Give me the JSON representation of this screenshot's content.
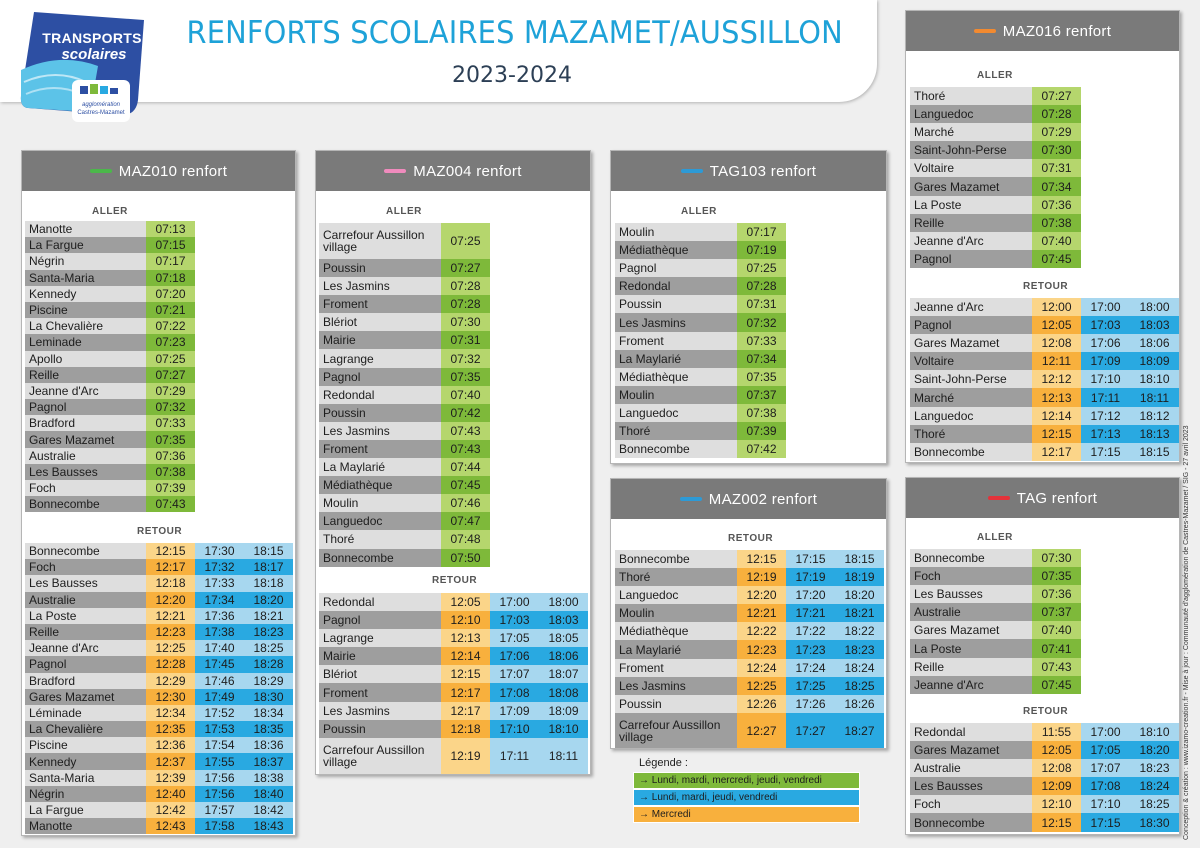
{
  "header": {
    "title": "RENFORTS SCOLAIRES MAZAMET/AUSSILLON",
    "year": "2023-2024",
    "logo": {
      "line1": "TRANSPORTS",
      "line2": "scolaires",
      "line3": "agglomération",
      "line4": "Castres-Mazamet"
    }
  },
  "colors": {
    "title_blue": "#1ea2d8",
    "line_green": "#4bb84a",
    "line_pink": "#f08bbd",
    "line_blue": "#2d9ad6",
    "line_orange": "#f28a30",
    "line_red": "#e3323a",
    "green_time": "#7eb93a",
    "orange_time": "#f8b03d",
    "blue_time": "#29a9e1"
  },
  "lines": [
    {
      "id": "maz010",
      "name": "MAZ010 renfort",
      "swatch": "line_green",
      "aller_label": "ALLER",
      "aller": [
        [
          "Manotte",
          "07:13"
        ],
        [
          "La Fargue",
          "07:15"
        ],
        [
          "Négrin",
          "07:17"
        ],
        [
          "Santa-Maria",
          "07:18"
        ],
        [
          "Kennedy",
          "07:20"
        ],
        [
          "Piscine",
          "07:21"
        ],
        [
          "La Chevalière",
          "07:22"
        ],
        [
          "Leminade",
          "07:23"
        ],
        [
          "Apollo",
          "07:25"
        ],
        [
          "Reille",
          "07:27"
        ],
        [
          "Jeanne d'Arc",
          "07:29"
        ],
        [
          "Pagnol",
          "07:32"
        ],
        [
          "Bradford",
          "07:33"
        ],
        [
          "Gares Mazamet",
          "07:35"
        ],
        [
          "Australie",
          "07:36"
        ],
        [
          "Les Bausses",
          "07:38"
        ],
        [
          "Foch",
          "07:39"
        ],
        [
          "Bonnecombe",
          "07:43"
        ]
      ],
      "retour_label": "RETOUR",
      "retour": [
        [
          "Bonnecombe",
          "12:15",
          "17:30",
          "18:15"
        ],
        [
          "Foch",
          "12:17",
          "17:32",
          "18:17"
        ],
        [
          "Les Bausses",
          "12:18",
          "17:33",
          "18:18"
        ],
        [
          "Australie",
          "12:20",
          "17:34",
          "18:20"
        ],
        [
          "La Poste",
          "12:21",
          "17:36",
          "18:21"
        ],
        [
          "Reille",
          "12:23",
          "17:38",
          "18:23"
        ],
        [
          "Jeanne d'Arc",
          "12:25",
          "17:40",
          "18:25"
        ],
        [
          "Pagnol",
          "12:28",
          "17:45",
          "18:28"
        ],
        [
          "Bradford",
          "12:29",
          "17:46",
          "18:29"
        ],
        [
          "Gares Mazamet",
          "12:30",
          "17:49",
          "18:30"
        ],
        [
          "Léminade",
          "12:34",
          "17:52",
          "18:34"
        ],
        [
          "La Chevalière",
          "12:35",
          "17:53",
          "18:35"
        ],
        [
          "Piscine",
          "12:36",
          "17:54",
          "18:36"
        ],
        [
          "Kennedy",
          "12:37",
          "17:55",
          "18:37"
        ],
        [
          "Santa-Maria",
          "12:39",
          "17:56",
          "18:38"
        ],
        [
          "Négrin",
          "12:40",
          "17:56",
          "18:40"
        ],
        [
          "La Fargue",
          "12:42",
          "17:57",
          "18:42"
        ],
        [
          "Manotte",
          "12:43",
          "17:58",
          "18:43"
        ]
      ]
    },
    {
      "id": "maz004",
      "name": "MAZ004 renfort",
      "swatch": "line_pink",
      "aller_label": "ALLER",
      "aller": [
        [
          "Carrefour Aussillon village",
          "07:25"
        ],
        [
          "Poussin",
          "07:27"
        ],
        [
          "Les Jasmins",
          "07:28"
        ],
        [
          "Froment",
          "07:28"
        ],
        [
          "Blériot",
          "07:30"
        ],
        [
          "Mairie",
          "07:31"
        ],
        [
          "Lagrange",
          "07:32"
        ],
        [
          "Pagnol",
          "07:35"
        ],
        [
          "Redondal",
          "07:40"
        ],
        [
          "Poussin",
          "07:42"
        ],
        [
          "Les Jasmins",
          "07:43"
        ],
        [
          "Froment",
          "07:43"
        ],
        [
          "La Maylarié",
          "07:44"
        ],
        [
          "Médiathèque",
          "07:45"
        ],
        [
          "Moulin",
          "07:46"
        ],
        [
          "Languedoc",
          "07:47"
        ],
        [
          "Thoré",
          "07:48"
        ],
        [
          "Bonnecombe",
          "07:50"
        ]
      ],
      "retour_label": "RETOUR",
      "retour": [
        [
          "Redondal",
          "12:05",
          "17:00",
          "18:00"
        ],
        [
          "Pagnol",
          "12:10",
          "17:03",
          "18:03"
        ],
        [
          "Lagrange",
          "12:13",
          "17:05",
          "18:05"
        ],
        [
          "Mairie",
          "12:14",
          "17:06",
          "18:06"
        ],
        [
          "Blériot",
          "12:15",
          "17:07",
          "18:07"
        ],
        [
          "Froment",
          "12:17",
          "17:08",
          "18:08"
        ],
        [
          "Les Jasmins",
          "12:17",
          "17:09",
          "18:09"
        ],
        [
          "Poussin",
          "12:18",
          "17:10",
          "18:10"
        ],
        [
          "Carrefour Aussillon village",
          "12:19",
          "17:11",
          "18:11"
        ]
      ]
    },
    {
      "id": "tag103",
      "name": "TAG103 renfort",
      "swatch": "line_blue",
      "aller_label": "ALLER",
      "aller": [
        [
          "Moulin",
          "07:17"
        ],
        [
          "Médiathèque",
          "07:19"
        ],
        [
          "Pagnol",
          "07:25"
        ],
        [
          "Redondal",
          "07:28"
        ],
        [
          "Poussin",
          "07:31"
        ],
        [
          "Les Jasmins",
          "07:32"
        ],
        [
          "Froment",
          "07:33"
        ],
        [
          "La Maylarié",
          "07:34"
        ],
        [
          "Médiathèque",
          "07:35"
        ],
        [
          "Moulin",
          "07:37"
        ],
        [
          "Languedoc",
          "07:38"
        ],
        [
          "Thoré",
          "07:39"
        ],
        [
          "Bonnecombe",
          "07:42"
        ]
      ]
    },
    {
      "id": "maz002",
      "name": "MAZ002 renfort",
      "swatch": "line_blue",
      "retour_label": "RETOUR",
      "retour": [
        [
          "Bonnecombe",
          "12:15",
          "17:15",
          "18:15"
        ],
        [
          "Thoré",
          "12:19",
          "17:19",
          "18:19"
        ],
        [
          "Languedoc",
          "12:20",
          "17:20",
          "18:20"
        ],
        [
          "Moulin",
          "12:21",
          "17:21",
          "18:21"
        ],
        [
          "Médiathèque",
          "12:22",
          "17:22",
          "18:22"
        ],
        [
          "La Maylarié",
          "12:23",
          "17:23",
          "18:23"
        ],
        [
          "Froment",
          "12:24",
          "17:24",
          "18:24"
        ],
        [
          "Les Jasmins",
          "12:25",
          "17:25",
          "18:25"
        ],
        [
          "Poussin",
          "12:26",
          "17:26",
          "18:26"
        ],
        [
          "Carrefour Aussillon village",
          "12:27",
          "17:27",
          "18:27"
        ]
      ]
    },
    {
      "id": "maz016",
      "name": "MAZ016 renfort",
      "swatch": "line_orange",
      "aller_label": "ALLER",
      "aller": [
        [
          "Thoré",
          "07:27"
        ],
        [
          "Languedoc",
          "07:28"
        ],
        [
          "Marché",
          "07:29"
        ],
        [
          "Saint-John-Perse",
          "07:30"
        ],
        [
          "Voltaire",
          "07:31"
        ],
        [
          "Gares Mazamet",
          "07:34"
        ],
        [
          "La Poste",
          "07:36"
        ],
        [
          "Reille",
          "07:38"
        ],
        [
          "Jeanne d'Arc",
          "07:40"
        ],
        [
          "Pagnol",
          "07:45"
        ]
      ],
      "retour_label": "RETOUR",
      "retour": [
        [
          "Jeanne d'Arc",
          "12:00",
          "17:00",
          "18:00"
        ],
        [
          "Pagnol",
          "12:05",
          "17:03",
          "18:03"
        ],
        [
          "Gares Mazamet",
          "12:08",
          "17:06",
          "18:06"
        ],
        [
          "Voltaire",
          "12:11",
          "17:09",
          "18:09"
        ],
        [
          "Saint-John-Perse",
          "12:12",
          "17:10",
          "18:10"
        ],
        [
          "Marché",
          "12:13",
          "17:11",
          "18:11"
        ],
        [
          "Languedoc",
          "12:14",
          "17:12",
          "18:12"
        ],
        [
          "Thoré",
          "12:15",
          "17:13",
          "18:13"
        ],
        [
          "Bonnecombe",
          "12:17",
          "17:15",
          "18:15"
        ]
      ]
    },
    {
      "id": "tag",
      "name": "TAG renfort",
      "swatch": "line_red",
      "aller_label": "ALLER",
      "aller": [
        [
          "Bonnecombe",
          "07:30"
        ],
        [
          "Foch",
          "07:35"
        ],
        [
          "Les Bausses",
          "07:36"
        ],
        [
          "Australie",
          "07:37"
        ],
        [
          "Gares Mazamet",
          "07:40"
        ],
        [
          "La Poste",
          "07:41"
        ],
        [
          "Reille",
          "07:43"
        ],
        [
          "Jeanne d'Arc",
          "07:45"
        ]
      ],
      "retour_label": "RETOUR",
      "retour": [
        [
          "Redondal",
          "11:55",
          "17:00",
          "18:10"
        ],
        [
          "Gares Mazamet",
          "12:05",
          "17:05",
          "18:20"
        ],
        [
          "Australie",
          "12:08",
          "17:07",
          "18:23"
        ],
        [
          "Les Bausses",
          "12:09",
          "17:08",
          "18:24"
        ],
        [
          "Foch",
          "12:10",
          "17:10",
          "18:25"
        ],
        [
          "Bonnecombe",
          "12:15",
          "17:15",
          "18:30"
        ]
      ]
    }
  ],
  "legend": {
    "title": "Légende :",
    "items": [
      {
        "text": "→ Lundi, mardi, mercredi, jeudi, vendredi",
        "color": "#7eb93a"
      },
      {
        "text": "→ Lundi, mardi, jeudi, vendredi",
        "color": "#29a9e1"
      },
      {
        "text": "→ Mercredi",
        "color": "#f8b03d"
      }
    ]
  },
  "credit": "Conception & création : www.izamo-creation.fr - Mise à jour : Communauté d'agglomération de Castres-Mazamet / SIG - 27 avril 2023"
}
